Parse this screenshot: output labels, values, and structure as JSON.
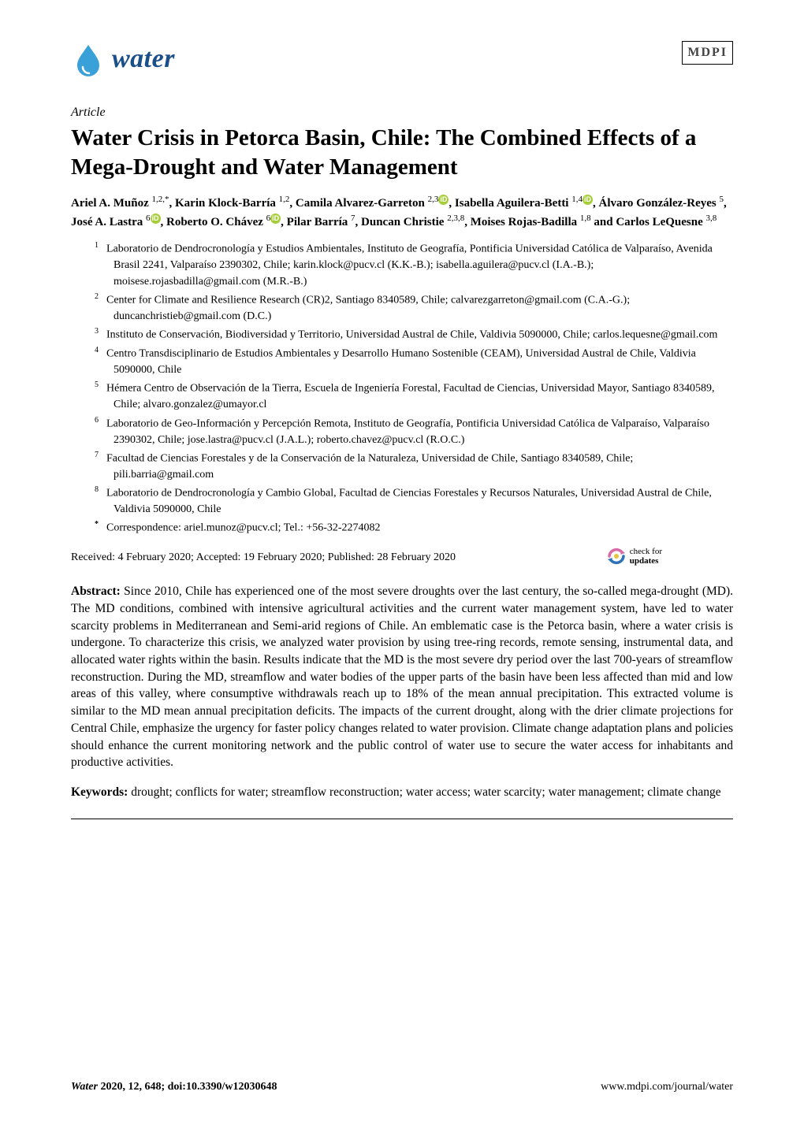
{
  "journal": {
    "logo_text": "water",
    "publisher_mark": "MDPI"
  },
  "article_label": "Article",
  "title": "Water Crisis in Petorca Basin, Chile: The Combined Effects of a Mega-Drought and Water Management",
  "authors_html_parts": [
    {
      "name": "Ariel A. Muñoz",
      "sup": "1,2,",
      "star": true,
      "orcid": false
    },
    {
      "name": "Karin Klock-Barría",
      "sup": "1,2",
      "orcid": false
    },
    {
      "name": "Camila Alvarez-Garreton",
      "sup": "2,3",
      "orcid": true
    },
    {
      "name": "Isabella Aguilera-Betti",
      "sup": "1,4",
      "orcid": true
    },
    {
      "name": "Álvaro González-Reyes",
      "sup": "5",
      "orcid": false
    },
    {
      "name": "José A. Lastra",
      "sup": "6",
      "orcid": true
    },
    {
      "name": "Roberto O. Chávez",
      "sup": "6",
      "orcid": true
    },
    {
      "name": "Pilar Barría",
      "sup": "7",
      "orcid": false
    },
    {
      "name": "Duncan Christie",
      "sup": "2,3,8",
      "orcid": false
    },
    {
      "name": "Moises Rojas-Badilla",
      "sup": "1,8",
      "orcid": false
    },
    {
      "name": "Carlos LeQuesne",
      "sup": "3,8",
      "orcid": false,
      "last": true
    }
  ],
  "affiliations": [
    {
      "n": "1",
      "text": "Laboratorio de Dendrocronología y Estudios Ambientales, Instituto de Geografía, Pontificia Universidad Católica de Valparaíso, Avenida Brasil 2241, Valparaíso 2390302, Chile; karin.klock@pucv.cl (K.K.-B.); isabella.aguilera@pucv.cl (I.A.-B.); moisese.rojasbadilla@gmail.com (M.R.-B.)"
    },
    {
      "n": "2",
      "text": "Center for Climate and Resilience Research (CR)2, Santiago 8340589, Chile; calvarezgarreton@gmail.com (C.A.-G.); duncanchristieb@gmail.com (D.C.)"
    },
    {
      "n": "3",
      "text": "Instituto de Conservación, Biodiversidad y Territorio, Universidad Austral de Chile, Valdivia 5090000, Chile; carlos.lequesne@gmail.com"
    },
    {
      "n": "4",
      "text": "Centro Transdisciplinario de Estudios Ambientales y Desarrollo Humano Sostenible (CEAM), Universidad Austral de Chile, Valdivia 5090000, Chile"
    },
    {
      "n": "5",
      "text": "Hémera Centro de Observación de la Tierra, Escuela de Ingeniería Forestal, Facultad de Ciencias, Universidad Mayor, Santiago 8340589, Chile; alvaro.gonzalez@umayor.cl"
    },
    {
      "n": "6",
      "text": "Laboratorio de Geo-Información y Percepción Remota, Instituto de Geografía, Pontificia Universidad Católica de Valparaíso, Valparaíso 2390302, Chile; jose.lastra@pucv.cl (J.A.L.); roberto.chavez@pucv.cl (R.O.C.)"
    },
    {
      "n": "7",
      "text": "Facultad de Ciencias Forestales y de la Conservación de la Naturaleza, Universidad de Chile, Santiago 8340589, Chile; pili.barria@gmail.com"
    },
    {
      "n": "8",
      "text": "Laboratorio de Dendrocronología y Cambio Global, Facultad de Ciencias Forestales y Recursos Naturales, Universidad Austral de Chile, Valdivia 5090000, Chile"
    },
    {
      "n": "*",
      "text": "Correspondence: ariel.munoz@pucv.cl; Tel.: +56-32-2274082",
      "bold": true
    }
  ],
  "dates_line": "Received: 4 February 2020; Accepted: 19 February 2020; Published: 28 February 2020",
  "check_updates": {
    "line1": "check for",
    "line2": "updates"
  },
  "abstract_label": "Abstract:",
  "abstract_text": " Since 2010, Chile has experienced one of the most severe droughts over the last century, the so-called mega-drought (MD). The MD conditions, combined with intensive agricultural activities and the current water management system, have led to water scarcity problems in Mediterranean and Semi-arid regions of Chile. An emblematic case is the Petorca basin, where a water crisis is undergone. To characterize this crisis, we analyzed water provision by using tree-ring records, remote sensing, instrumental data, and allocated water rights within the basin. Results indicate that the MD is the most severe dry period over the last 700-years of streamflow reconstruction. During the MD, streamflow and water bodies of the upper parts of the basin have been less affected than mid and low areas of this valley, where consumptive withdrawals reach up to 18% of the mean annual precipitation. This extracted volume is similar to the MD mean annual precipitation deficits. The impacts of the current drought, along with the drier climate projections for Central Chile, emphasize the urgency for faster policy changes related to water provision. Climate change adaptation plans and policies should enhance the current monitoring network and the public control of water use to secure the water access for inhabitants and productive activities.",
  "keywords_label": "Keywords:",
  "keywords_text": " drought; conflicts for water; streamflow reconstruction; water access; water scarcity; water management; climate change",
  "footer": {
    "left_journal": "Water",
    "left_rest": " 2020, 12, 648; doi:10.3390/w12030648",
    "right": "www.mdpi.com/journal/water"
  },
  "colors": {
    "logo_blue": "#1a4f8a",
    "drop_blue": "#3aa0d8",
    "orcid_green": "#a6ce39",
    "check_pink": "#d86aa6",
    "check_blue": "#2c72b8",
    "check_yellow": "#e6c33a"
  }
}
